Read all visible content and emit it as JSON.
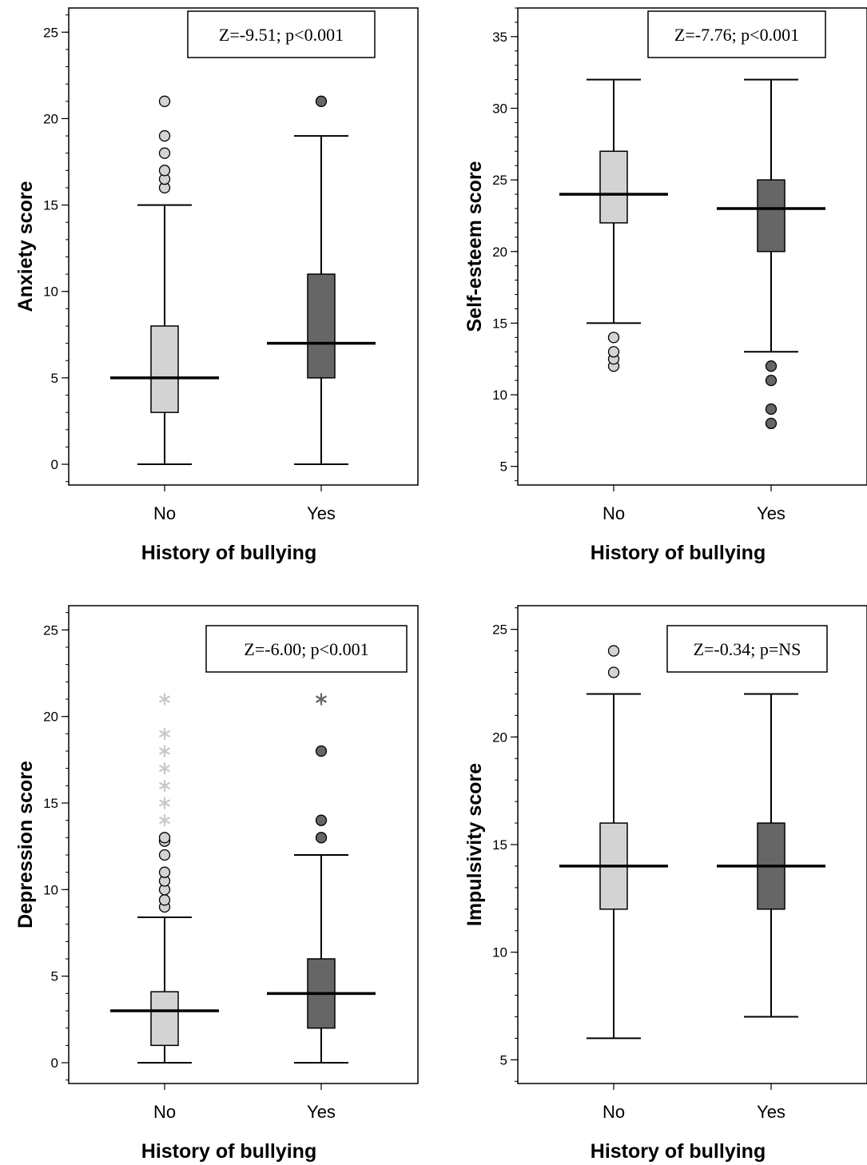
{
  "colors": {
    "no": "#d3d3d3",
    "yes": "#666666",
    "line": "#000000",
    "star_no": "#c8c8c8",
    "star_yes": "#666666"
  },
  "chart_data": [
    {
      "type": "box",
      "categories": [
        "No",
        "Yes"
      ],
      "xlabel": "History of bullying",
      "ylabel": "Anxiety score",
      "stat": "Z=-9.51; p<0.001",
      "ylim": [
        -1.2,
        26.4
      ],
      "ticks": [
        0,
        5,
        10,
        15,
        20,
        25
      ],
      "grid": false,
      "boxes": [
        {
          "category": "No",
          "low": 0,
          "q1": 3,
          "median": 5,
          "q3": 8,
          "high": 15,
          "outliers": [
            16,
            16.5,
            17,
            18,
            19,
            21
          ],
          "extremes": []
        },
        {
          "category": "Yes",
          "low": 0,
          "q1": 5,
          "median": 7,
          "q3": 11,
          "high": 19,
          "outliers": [
            21
          ],
          "extremes": []
        }
      ]
    },
    {
      "type": "box",
      "categories": [
        "No",
        "Yes"
      ],
      "xlabel": "History of bullying",
      "ylabel": "Self-esteem score",
      "stat": "Z=-7.76; p<0.001",
      "ylim": [
        3.7,
        37.0
      ],
      "ticks": [
        5,
        10,
        15,
        20,
        25,
        30,
        35
      ],
      "grid": false,
      "boxes": [
        {
          "category": "No",
          "low": 15,
          "q1": 22,
          "median": 24,
          "q3": 27,
          "high": 32,
          "outliers": [
            12,
            12.5,
            13,
            14
          ],
          "extremes": []
        },
        {
          "category": "Yes",
          "low": 13,
          "q1": 20,
          "median": 23,
          "q3": 25,
          "high": 32,
          "outliers": [
            8,
            9,
            11,
            12
          ],
          "extremes": []
        }
      ]
    },
    {
      "type": "box",
      "categories": [
        "No",
        "Yes"
      ],
      "xlabel": "History of bullying",
      "ylabel": "Depression score",
      "stat": "Z=-6.00; p<0.001",
      "ylim": [
        -1.2,
        26.4
      ],
      "ticks": [
        0,
        5,
        10,
        15,
        20,
        25
      ],
      "grid": false,
      "boxes": [
        {
          "category": "No",
          "low": 0,
          "q1": 1,
          "median": 3,
          "q3": 4.1,
          "high": 8.4,
          "outliers": [
            9,
            9.4,
            10,
            10.5,
            11,
            12,
            12.8,
            13
          ],
          "extremes": [
            14,
            15,
            16,
            17,
            18,
            19,
            21
          ]
        },
        {
          "category": "Yes",
          "low": 0,
          "q1": 2,
          "median": 4,
          "q3": 6,
          "high": 12,
          "outliers": [
            13,
            14,
            18
          ],
          "extremes": [
            21
          ]
        }
      ]
    },
    {
      "type": "box",
      "categories": [
        "No",
        "Yes"
      ],
      "xlabel": "History of bullying",
      "ylabel": "Impulsivity score",
      "stat": "Z=-0.34; p=NS",
      "ylim": [
        3.9,
        26.1
      ],
      "ticks": [
        5,
        10,
        15,
        20,
        25
      ],
      "grid": false,
      "boxes": [
        {
          "category": "No",
          "low": 6,
          "q1": 12,
          "median": 14,
          "q3": 16,
          "high": 22,
          "outliers": [
            23,
            24
          ],
          "extremes": []
        },
        {
          "category": "Yes",
          "low": 7,
          "q1": 12,
          "median": 14,
          "q3": 16,
          "high": 22,
          "outliers": [],
          "extremes": []
        }
      ]
    }
  ]
}
